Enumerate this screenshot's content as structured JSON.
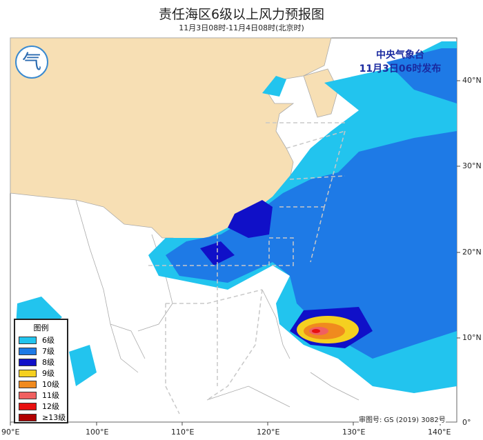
{
  "title": "责任海区6级以上风力预报图",
  "subtitle": "11月3日08时-11月4日08时(北京时)",
  "issuer": {
    "line1": "中央气象台",
    "line2": "11月3日06时发布"
  },
  "logo": {
    "glyph": "气"
  },
  "approval": "审图号: GS (2019) 3082号",
  "legend": {
    "title": "图例",
    "items": [
      {
        "label": "6级",
        "color": "#22c4ee"
      },
      {
        "label": "7级",
        "color": "#1e7ae6"
      },
      {
        "label": "8级",
        "color": "#1010c8"
      },
      {
        "label": "9级",
        "color": "#f5d020"
      },
      {
        "label": "10级",
        "color": "#f08a1e"
      },
      {
        "label": "11级",
        "color": "#f06060"
      },
      {
        "label": "12级",
        "color": "#e81010"
      },
      {
        "label": "≥13级",
        "color": "#b00000"
      }
    ]
  },
  "axes": {
    "lon": [
      "90°E",
      "100°E",
      "110°E",
      "120°E",
      "130°E",
      "140°E"
    ],
    "lat": [
      "40°N",
      "30°N",
      "20°N",
      "10°N",
      "0°"
    ]
  },
  "colors": {
    "land_china": "#f7dfb4",
    "sea": "#ffffff",
    "border": "#999999"
  }
}
